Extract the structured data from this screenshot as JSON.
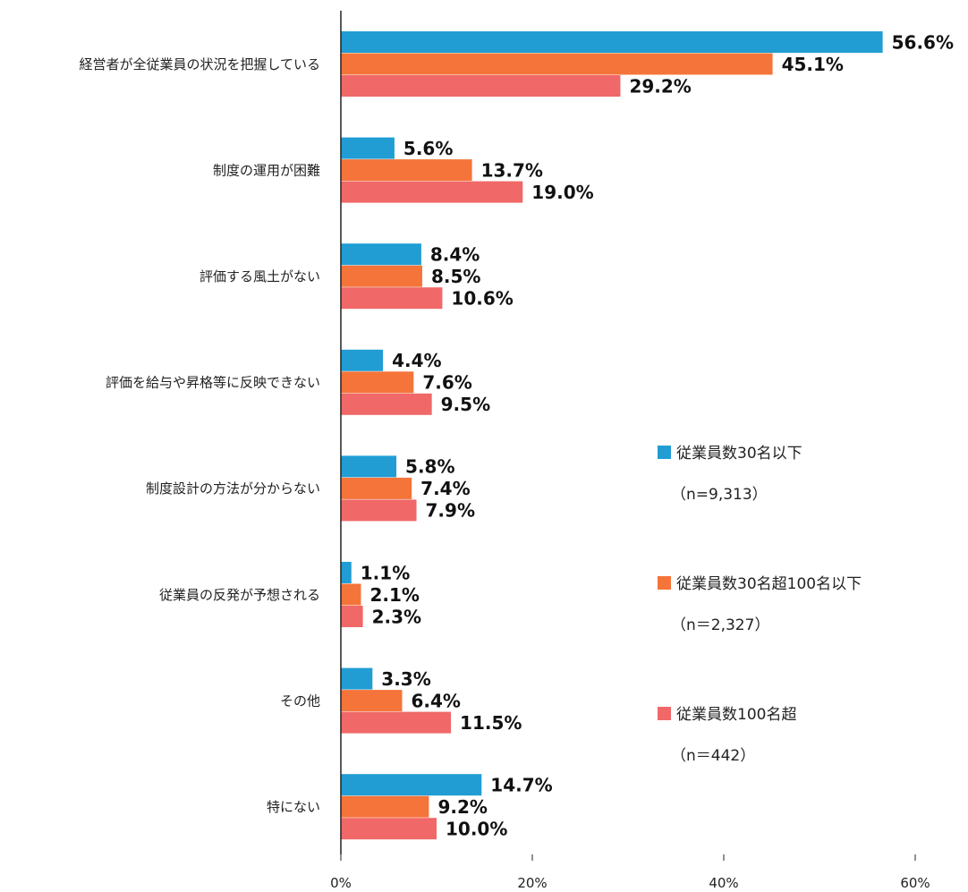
{
  "chart_data": {
    "type": "bar",
    "orientation": "horizontal",
    "title": "",
    "xlabel": "",
    "ylabel": "",
    "xlim": [
      0,
      60
    ],
    "x_ticks": [
      "0%",
      "20%",
      "40%",
      "60%"
    ],
    "grid": false,
    "legend_placement": "right",
    "categories": [
      "経営者が全従業員の状況を把握している",
      "制度の運用が困難",
      "評価する風土がない",
      "評価を給与や昇格等に反映できない",
      "制度設計の方法が分からない",
      "従業員の反発が予想される",
      "その他",
      "特にない"
    ],
    "series": [
      {
        "name": "従業員数30名以下",
        "n_label": "（n=9,313）",
        "color": "#219dd4",
        "values": [
          56.6,
          5.6,
          8.4,
          4.4,
          5.8,
          1.1,
          3.3,
          14.7
        ]
      },
      {
        "name": "従業員数30名超100名以下",
        "n_label": "（n＝2,327）",
        "color": "#f4743a",
        "values": [
          45.1,
          13.7,
          8.5,
          7.6,
          7.4,
          2.1,
          6.4,
          9.2
        ]
      },
      {
        "name": "従業員数100名超",
        "n_label": "（n＝442）",
        "color": "#f06868",
        "values": [
          29.2,
          19.0,
          10.6,
          9.5,
          7.9,
          2.3,
          11.5,
          10.0
        ]
      }
    ]
  }
}
